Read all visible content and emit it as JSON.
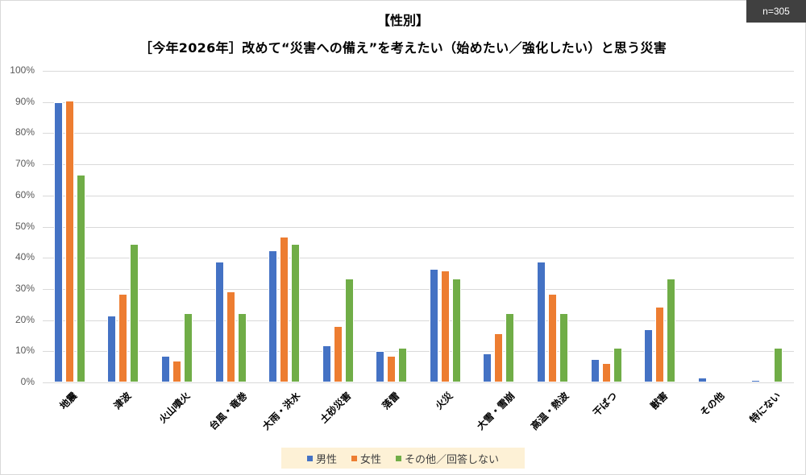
{
  "badge": {
    "text": "n=305"
  },
  "title": {
    "line1": "【性別】",
    "line2": "［今年2026年］改めて“災害への備え”を考えたい（始めたい／強化したい）と思う災害"
  },
  "y_ticks": [
    "100%",
    "90%",
    "80%",
    "70%",
    "60%",
    "50%",
    "40%",
    "30%",
    "20%",
    "10%",
    "0%"
  ],
  "legend": [
    {
      "label": "男性",
      "color": "#4472C4"
    },
    {
      "label": "女性",
      "color": "#ED7D31"
    },
    {
      "label": "その他／回答しない",
      "color": "#70AD47"
    }
  ],
  "chart_data": {
    "type": "bar",
    "title": "【性別】［今年2026年］改めて“災害への備え”を考えたい（始めたい／強化したい）と思う災害",
    "note": "n=305",
    "categories": [
      "地震",
      "津波",
      "火山噴火",
      "台風・竜巻",
      "大雨・洪水",
      "土砂災害",
      "落雷",
      "火災",
      "大雪・雪崩",
      "高温・熱波",
      "干ばつ",
      "獣害",
      "その他",
      "特にない"
    ],
    "series": [
      {
        "name": "男性",
        "color": "#4472C4",
        "values": [
          90.0,
          21.5,
          8.6,
          38.7,
          42.5,
          11.8,
          10.0,
          36.4,
          9.4,
          38.7,
          7.5,
          17.0,
          1.6,
          0.9
        ]
      },
      {
        "name": "女性",
        "color": "#ED7D31",
        "values": [
          90.4,
          28.5,
          7.0,
          29.3,
          46.8,
          18.0,
          8.6,
          35.8,
          15.8,
          28.5,
          6.3,
          24.4,
          0.0,
          0.6
        ]
      },
      {
        "name": "その他／回答しない",
        "color": "#70AD47",
        "values": [
          66.7,
          44.4,
          22.2,
          22.2,
          44.4,
          33.3,
          11.1,
          33.3,
          22.2,
          22.2,
          11.1,
          33.3,
          0.0,
          11.1
        ]
      }
    ],
    "xlabel": "",
    "ylabel": "",
    "ylim": [
      0,
      100
    ],
    "y_tick_format": "percent",
    "grid": true,
    "legend_position": "bottom"
  }
}
